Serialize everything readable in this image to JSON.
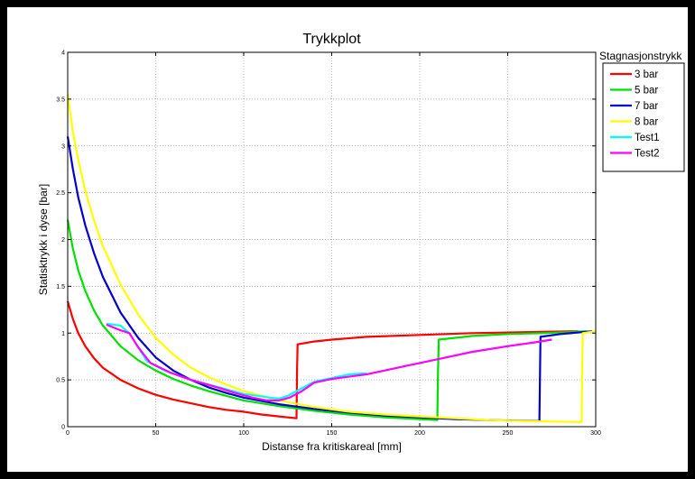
{
  "chart_data": {
    "type": "line",
    "title": "Trykkplot",
    "xlabel": "Distanse fra kritiskareal [mm]",
    "ylabel": "Statisktrykk i dyse [bar]",
    "xlim": [
      0,
      300
    ],
    "ylim": [
      0,
      4
    ],
    "x_ticks": [
      "0",
      "50",
      "100",
      "150",
      "200",
      "250",
      "300"
    ],
    "y_ticks": [
      "0",
      "0.5",
      "1",
      "1.5",
      "2",
      "2.5",
      "3",
      "3.5",
      "4"
    ],
    "grid": true,
    "legend": {
      "title": "Stagnasjonstrykk",
      "position": "outside-right"
    },
    "series": [
      {
        "name": "3 bar",
        "color": "#ff0000",
        "points": [
          [
            0,
            1.34
          ],
          [
            3,
            1.15
          ],
          [
            6,
            1.0
          ],
          [
            10,
            0.86
          ],
          [
            15,
            0.73
          ],
          [
            20,
            0.63
          ],
          [
            30,
            0.5
          ],
          [
            40,
            0.41
          ],
          [
            50,
            0.34
          ],
          [
            60,
            0.29
          ],
          [
            70,
            0.25
          ],
          [
            80,
            0.21
          ],
          [
            90,
            0.18
          ],
          [
            100,
            0.16
          ],
          [
            110,
            0.13
          ],
          [
            120,
            0.11
          ],
          [
            130,
            0.09
          ],
          [
            130.3,
            0.6
          ],
          [
            130.6,
            0.88
          ],
          [
            140,
            0.91
          ],
          [
            150,
            0.93
          ],
          [
            170,
            0.96
          ],
          [
            200,
            0.98
          ],
          [
            230,
            1.0
          ],
          [
            260,
            1.01
          ],
          [
            290,
            1.02
          ]
        ]
      },
      {
        "name": "5 bar",
        "color": "#00e000",
        "points": [
          [
            0,
            2.21
          ],
          [
            3,
            1.9
          ],
          [
            6,
            1.67
          ],
          [
            10,
            1.45
          ],
          [
            15,
            1.24
          ],
          [
            20,
            1.08
          ],
          [
            30,
            0.86
          ],
          [
            40,
            0.71
          ],
          [
            50,
            0.6
          ],
          [
            60,
            0.51
          ],
          [
            70,
            0.44
          ],
          [
            80,
            0.38
          ],
          [
            90,
            0.33
          ],
          [
            100,
            0.28
          ],
          [
            120,
            0.22
          ],
          [
            140,
            0.17
          ],
          [
            160,
            0.13
          ],
          [
            180,
            0.1
          ],
          [
            200,
            0.08
          ],
          [
            210,
            0.07
          ],
          [
            210.4,
            0.6
          ],
          [
            210.8,
            0.93
          ],
          [
            230,
            0.97
          ],
          [
            250,
            0.99
          ],
          [
            270,
            1.0
          ],
          [
            295,
            1.02
          ]
        ]
      },
      {
        "name": "7 bar",
        "color": "#0000cc",
        "points": [
          [
            0,
            3.1
          ],
          [
            3,
            2.75
          ],
          [
            6,
            2.45
          ],
          [
            10,
            2.15
          ],
          [
            15,
            1.85
          ],
          [
            20,
            1.6
          ],
          [
            30,
            1.22
          ],
          [
            40,
            0.95
          ],
          [
            50,
            0.74
          ],
          [
            60,
            0.6
          ],
          [
            70,
            0.5
          ],
          [
            80,
            0.42
          ],
          [
            90,
            0.36
          ],
          [
            100,
            0.31
          ],
          [
            120,
            0.24
          ],
          [
            140,
            0.19
          ],
          [
            160,
            0.15
          ],
          [
            180,
            0.12
          ],
          [
            200,
            0.1
          ],
          [
            220,
            0.08
          ],
          [
            240,
            0.07
          ],
          [
            268,
            0.06
          ],
          [
            268.3,
            0.5
          ],
          [
            268.6,
            0.96
          ],
          [
            280,
            0.99
          ],
          [
            298,
            1.02
          ]
        ]
      },
      {
        "name": "8 bar",
        "color": "#ffff00",
        "points": [
          [
            0,
            3.55
          ],
          [
            3,
            3.15
          ],
          [
            6,
            2.85
          ],
          [
            10,
            2.52
          ],
          [
            15,
            2.2
          ],
          [
            20,
            1.93
          ],
          [
            30,
            1.52
          ],
          [
            40,
            1.2
          ],
          [
            50,
            0.95
          ],
          [
            60,
            0.77
          ],
          [
            70,
            0.63
          ],
          [
            80,
            0.53
          ],
          [
            90,
            0.45
          ],
          [
            100,
            0.38
          ],
          [
            120,
            0.28
          ],
          [
            140,
            0.21
          ],
          [
            160,
            0.16
          ],
          [
            180,
            0.13
          ],
          [
            200,
            0.11
          ],
          [
            220,
            0.09
          ],
          [
            240,
            0.07
          ],
          [
            260,
            0.06
          ],
          [
            292,
            0.05
          ],
          [
            292.3,
            0.6
          ],
          [
            292.6,
            1.0
          ],
          [
            300,
            1.02
          ]
        ]
      },
      {
        "name": "Test1",
        "color": "#00ffff",
        "points": [
          [
            22,
            1.1
          ],
          [
            30,
            1.08
          ],
          [
            35,
            1.0
          ],
          [
            40,
            0.85
          ],
          [
            45,
            0.7
          ],
          [
            55,
            0.6
          ],
          [
            70,
            0.5
          ],
          [
            90,
            0.4
          ],
          [
            100,
            0.35
          ],
          [
            108,
            0.33
          ],
          [
            115,
            0.31
          ],
          [
            120,
            0.3
          ],
          [
            125,
            0.33
          ],
          [
            130,
            0.38
          ],
          [
            140,
            0.48
          ],
          [
            150,
            0.52
          ],
          [
            160,
            0.56
          ],
          [
            170,
            0.57
          ]
        ]
      },
      {
        "name": "Test2",
        "color": "#ff00ff",
        "points": [
          [
            22,
            1.09
          ],
          [
            30,
            1.03
          ],
          [
            35,
            1.0
          ],
          [
            40,
            0.85
          ],
          [
            47,
            0.68
          ],
          [
            58,
            0.58
          ],
          [
            70,
            0.5
          ],
          [
            85,
            0.42
          ],
          [
            95,
            0.36
          ],
          [
            105,
            0.31
          ],
          [
            113,
            0.28
          ],
          [
            120,
            0.28
          ],
          [
            126,
            0.31
          ],
          [
            133,
            0.38
          ],
          [
            140,
            0.47
          ],
          [
            150,
            0.51
          ],
          [
            170,
            0.56
          ],
          [
            190,
            0.64
          ],
          [
            210,
            0.72
          ],
          [
            230,
            0.8
          ],
          [
            250,
            0.86
          ],
          [
            265,
            0.9
          ],
          [
            275,
            0.93
          ]
        ]
      }
    ]
  }
}
